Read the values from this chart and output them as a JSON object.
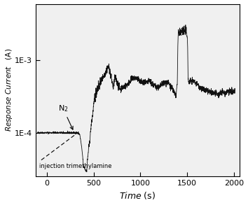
{
  "xlabel": "Time (s)",
  "ylabel": "Response Current   (A)",
  "xlim": [
    -120,
    2060
  ],
  "ylim_log": [
    2.5e-05,
    0.006
  ],
  "yticks": [
    0.0001,
    0.001
  ],
  "ytick_labels": [
    "1E-4",
    "1E-3"
  ],
  "xticks": [
    0,
    500,
    1000,
    1500,
    2000
  ],
  "line_color": "#111111",
  "background_color": "#f5f5f5",
  "seed": 42
}
